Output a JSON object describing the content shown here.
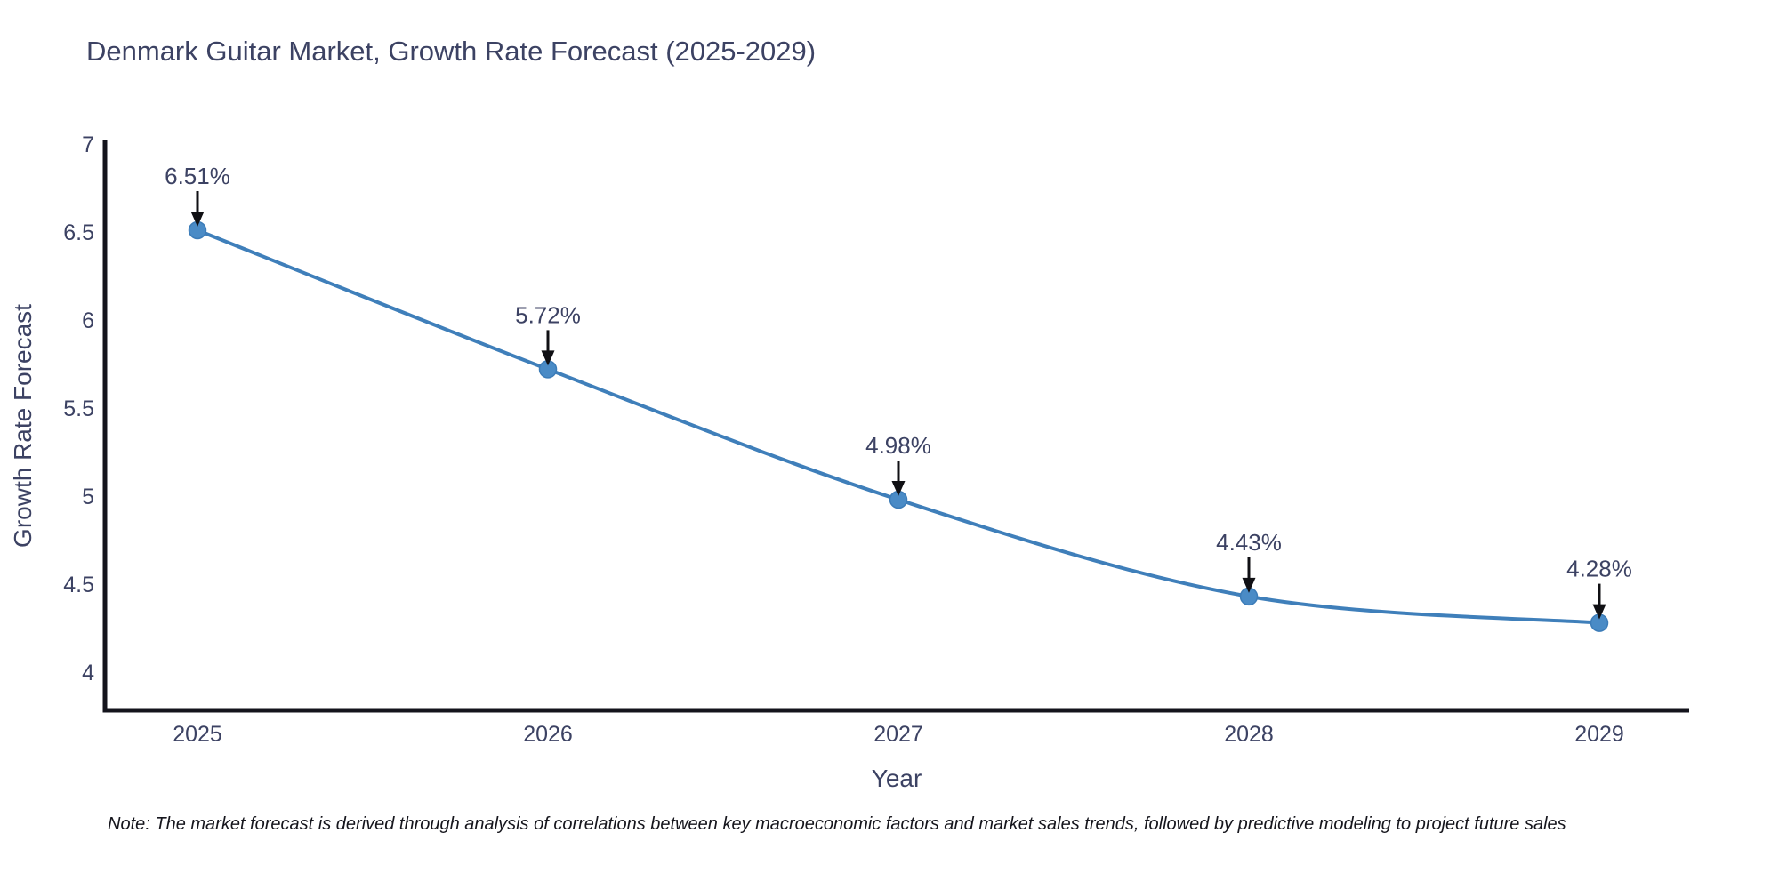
{
  "title": "Denmark Guitar Market, Growth Rate Forecast (2025-2029)",
  "note": "Note: The market forecast is derived through analysis of correlations between key macroeconomic factors and market sales trends, followed by predictive modeling to project future sales",
  "chart_data": {
    "type": "line",
    "title": "Denmark Guitar Market, Growth Rate Forecast (2025-2029)",
    "xlabel": "Year",
    "ylabel": "Growth Rate Forecast",
    "categories": [
      "2025",
      "2026",
      "2027",
      "2028",
      "2029"
    ],
    "values": [
      6.51,
      5.72,
      4.98,
      4.43,
      4.28
    ],
    "data_labels": [
      "6.51%",
      "5.72%",
      "4.98%",
      "4.43%",
      "4.28%"
    ],
    "y_ticks": [
      7,
      6.5,
      6,
      5.5,
      5,
      4.5,
      4
    ],
    "ylim": [
      3.78,
      7
    ],
    "grid": false,
    "legend": "none",
    "line_shape": "spline",
    "markers": true,
    "annotation_style": "value-label-with-down-arrow",
    "colors": {
      "line": "#3f7fba",
      "marker": "#4a8bc6",
      "marker_edge": "#3c7cb8",
      "annotation_arrow": "#101014",
      "text": "#3c4263",
      "axis": "#14141c",
      "note_text": "#16161d",
      "background": "#ffffff"
    }
  }
}
